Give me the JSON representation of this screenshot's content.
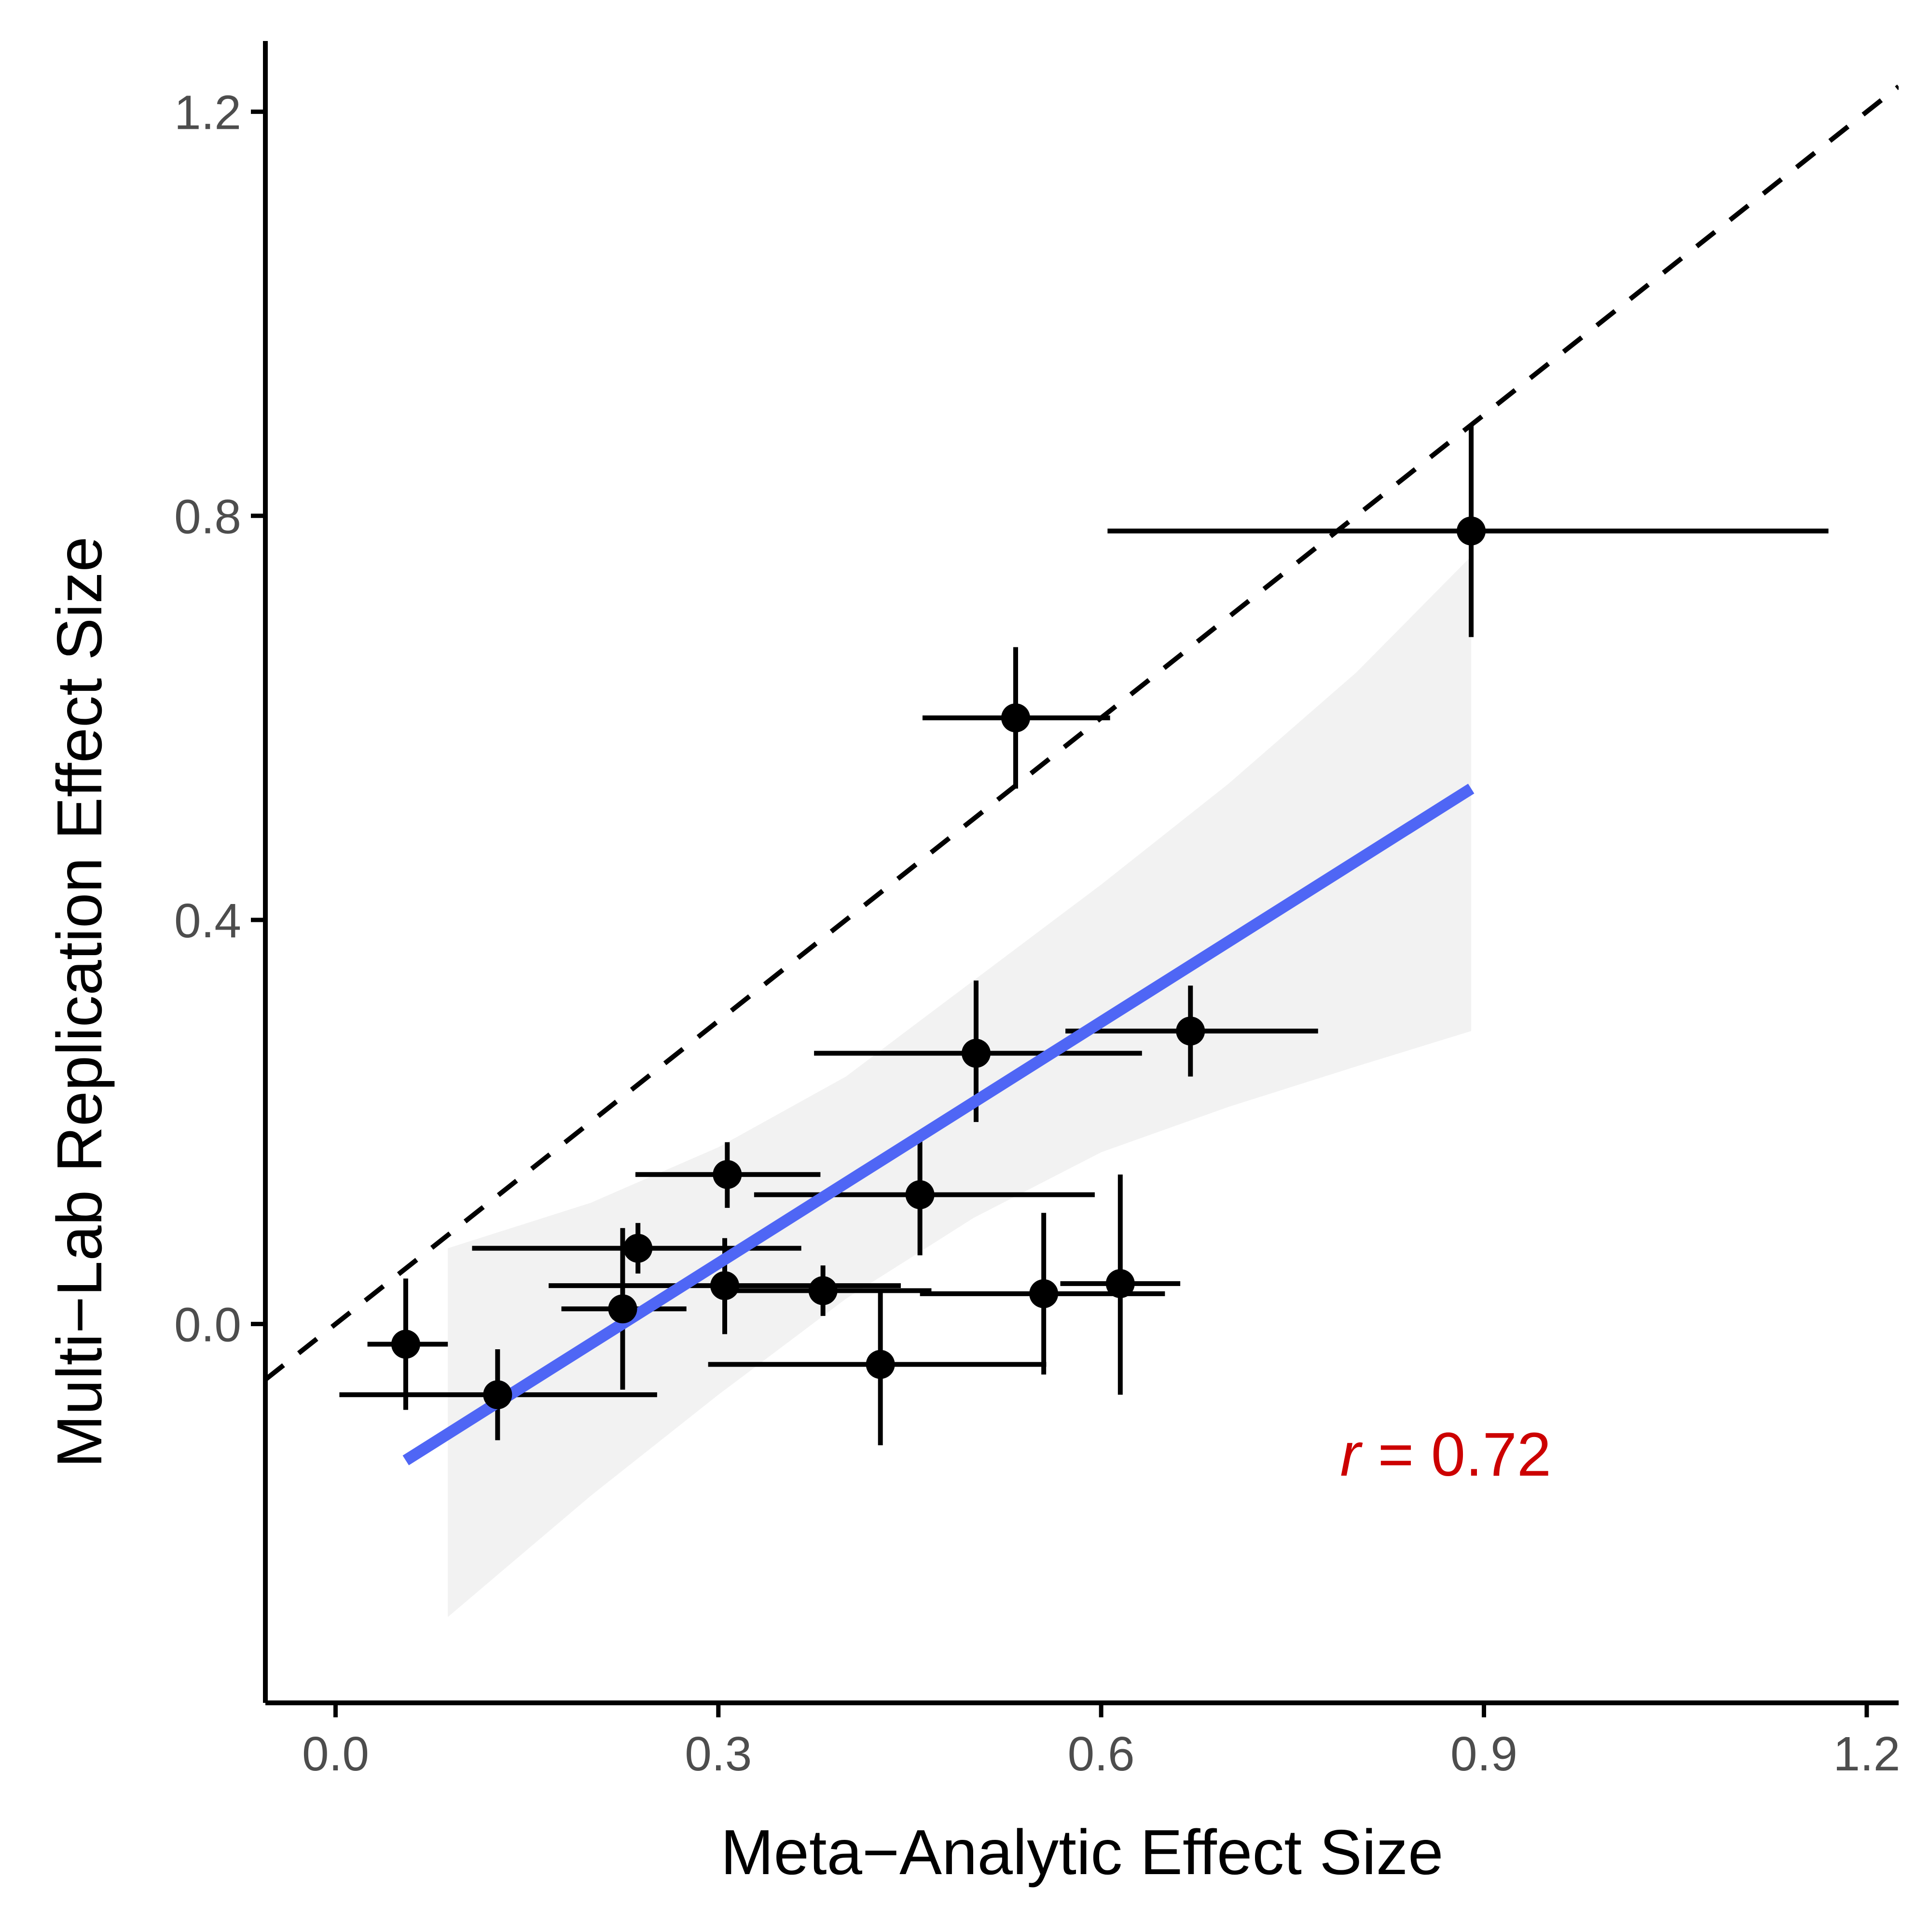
{
  "chart_data": {
    "type": "scatter",
    "xlabel": "Meta−Analytic Effect Size",
    "ylabel": "Multi−Lab Replication Effect Size",
    "xlim": [
      -0.055,
      1.225
    ],
    "ylim": [
      -0.375,
      1.27
    ],
    "xticks": [
      0.0,
      0.3,
      0.6,
      0.9,
      1.2
    ],
    "xtick_labels": [
      "0.0",
      "0.3",
      "0.6",
      "0.9",
      "1.2"
    ],
    "yticks": [
      0.0,
      0.4,
      0.8,
      1.2
    ],
    "ytick_labels": [
      "0.0",
      "0.4",
      "0.8",
      "1.2"
    ],
    "grid": false,
    "points": [
      {
        "x": 0.055,
        "y": -0.02,
        "xmin": 0.025,
        "xmax": 0.088,
        "ymin": -0.085,
        "ymax": 0.045
      },
      {
        "x": 0.127,
        "y": -0.07,
        "xmin": 0.003,
        "xmax": 0.252,
        "ymin": -0.115,
        "ymax": -0.025
      },
      {
        "x": 0.225,
        "y": 0.015,
        "xmin": 0.177,
        "xmax": 0.275,
        "ymin": -0.065,
        "ymax": 0.095
      },
      {
        "x": 0.237,
        "y": 0.075,
        "xmin": 0.107,
        "xmax": 0.365,
        "ymin": 0.05,
        "ymax": 0.1
      },
      {
        "x": 0.307,
        "y": 0.148,
        "xmin": 0.235,
        "xmax": 0.38,
        "ymin": 0.115,
        "ymax": 0.18
      },
      {
        "x": 0.305,
        "y": 0.038,
        "xmin": 0.167,
        "xmax": 0.443,
        "ymin": -0.01,
        "ymax": 0.085
      },
      {
        "x": 0.382,
        "y": 0.033,
        "xmin": 0.3,
        "xmax": 0.467,
        "ymin": 0.008,
        "ymax": 0.058
      },
      {
        "x": 0.427,
        "y": -0.04,
        "xmin": 0.292,
        "xmax": 0.557,
        "ymin": -0.12,
        "ymax": 0.035
      },
      {
        "x": 0.458,
        "y": 0.128,
        "xmin": 0.328,
        "xmax": 0.595,
        "ymin": 0.068,
        "ymax": 0.19
      },
      {
        "x": 0.502,
        "y": 0.268,
        "xmin": 0.375,
        "xmax": 0.632,
        "ymin": 0.2,
        "ymax": 0.34
      },
      {
        "x": 0.533,
        "y": 0.6,
        "xmin": 0.46,
        "xmax": 0.607,
        "ymin": 0.53,
        "ymax": 0.67
      },
      {
        "x": 0.555,
        "y": 0.03,
        "xmin": 0.458,
        "xmax": 0.65,
        "ymin": -0.05,
        "ymax": 0.11
      },
      {
        "x": 0.615,
        "y": 0.04,
        "xmin": 0.568,
        "xmax": 0.662,
        "ymin": -0.07,
        "ymax": 0.148
      },
      {
        "x": 0.67,
        "y": 0.29,
        "xmin": 0.572,
        "xmax": 0.77,
        "ymin": 0.245,
        "ymax": 0.335
      },
      {
        "x": 0.89,
        "y": 0.785,
        "xmin": 0.605,
        "xmax": 1.17,
        "ymin": 0.68,
        "ymax": 0.89
      }
    ],
    "reference_line": {
      "type": "identity",
      "style": "dashed",
      "color": "#000000"
    },
    "fit_line": {
      "type": "linear",
      "color": "#4f66f5",
      "x0": 0.055,
      "y0": -0.135,
      "x1": 0.89,
      "y1": 0.53
    },
    "confidence_band": {
      "color": "#f2f2f2",
      "x": [
        0.088,
        0.2,
        0.3,
        0.4,
        0.5,
        0.6,
        0.7,
        0.8,
        0.89
      ],
      "upper": [
        0.075,
        0.12,
        0.175,
        0.245,
        0.34,
        0.435,
        0.535,
        0.645,
        0.76
      ],
      "lower": [
        -0.29,
        -0.17,
        -0.07,
        0.025,
        0.105,
        0.17,
        0.215,
        0.255,
        0.29
      ]
    },
    "annotation": {
      "prefix": "r",
      "text": " = 0.72",
      "color": "#cc0000",
      "x": 0.87,
      "y": -0.15
    }
  }
}
